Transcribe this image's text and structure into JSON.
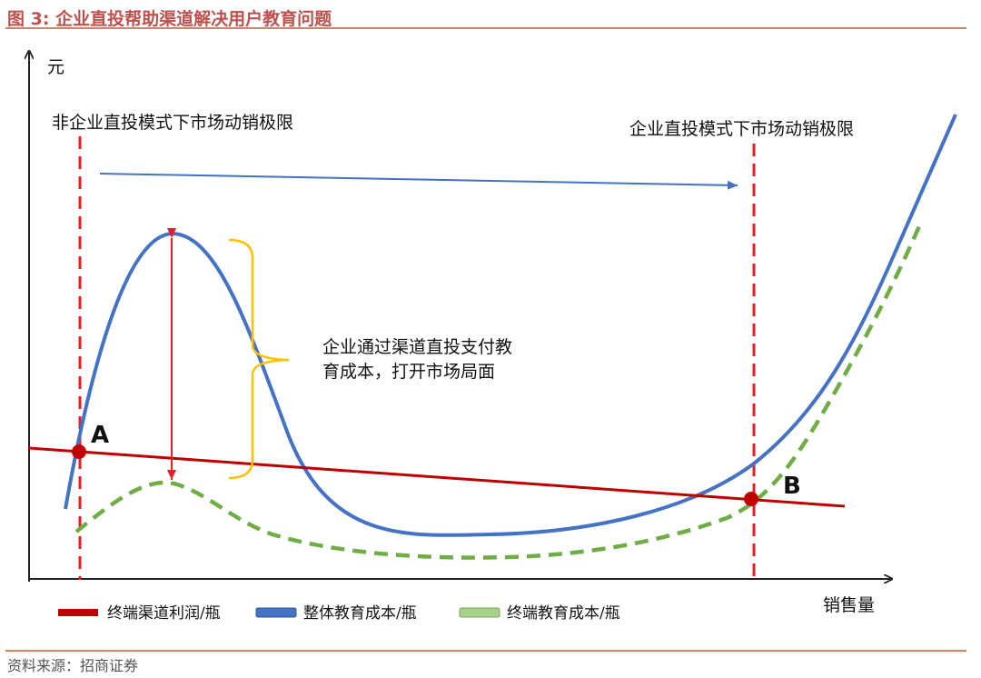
{
  "header": {
    "figure_no": "图 3:",
    "title": "企业直投帮助渠道解决用户教育问题"
  },
  "axes": {
    "y_label": "元",
    "x_label": "销售量"
  },
  "limits": {
    "left_label": "非企业直投模式下市场动销极限",
    "right_label": "企业直投模式下市场动销极限"
  },
  "annotation": {
    "line1": "企业通过渠道直投支付教",
    "line2": "育成本，打开市场局面"
  },
  "points": {
    "a": "A",
    "b": "B"
  },
  "legend": {
    "items": [
      {
        "label": "终端渠道利润/瓶",
        "color": "#c00000"
      },
      {
        "label": "整体教育成本/瓶",
        "color": "#4472c4"
      },
      {
        "label": "终端教育成本/瓶",
        "color": "#70ad47"
      }
    ]
  },
  "colors": {
    "accent": "#c0504d",
    "limit_line": "#ee1c25",
    "bracket": "#ffc000",
    "arrow": "#4472c4"
  },
  "footer": {
    "source": "资料来源：招商证券"
  }
}
